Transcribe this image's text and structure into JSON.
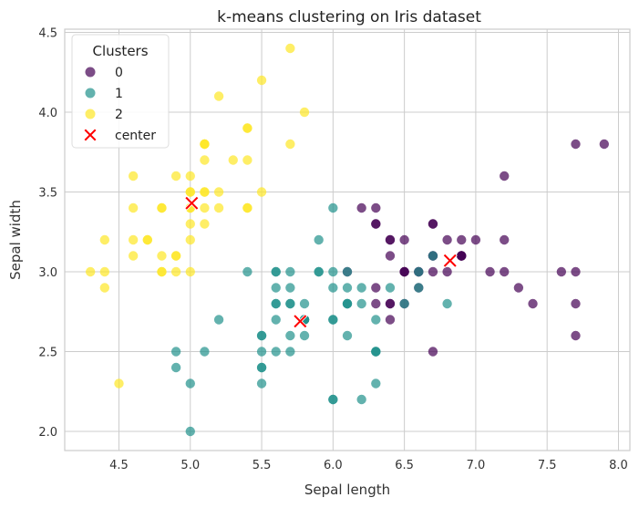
{
  "chart_data": {
    "type": "scatter",
    "title": "k-means clustering on Iris dataset",
    "xlabel": "Sepal length",
    "ylabel": "Sepal width",
    "xlim": [
      4.12,
      8.08
    ],
    "ylim": [
      1.88,
      4.52
    ],
    "x_ticks": [
      "4.5",
      "5.0",
      "5.5",
      "6.0",
      "6.5",
      "7.0",
      "7.5",
      "8.0"
    ],
    "x_tick_values": [
      4.5,
      5.0,
      5.5,
      6.0,
      6.5,
      7.0,
      7.5,
      8.0
    ],
    "y_ticks": [
      "2.0",
      "2.5",
      "3.0",
      "3.5",
      "4.0",
      "4.5"
    ],
    "y_tick_values": [
      2.0,
      2.5,
      3.0,
      3.5,
      4.0,
      4.5
    ],
    "grid": true,
    "legend": {
      "title": "Clusters",
      "position": "top-left",
      "entries": [
        "0",
        "1",
        "2",
        "center"
      ]
    },
    "series": [
      {
        "name": "0",
        "color": "#440154",
        "points": [
          [
            7.0,
            3.2
          ],
          [
            6.9,
            3.1
          ],
          [
            6.3,
            3.3
          ],
          [
            5.8,
            2.7
          ],
          [
            7.1,
            3.0
          ],
          [
            6.3,
            2.9
          ],
          [
            6.5,
            3.0
          ],
          [
            7.6,
            3.0
          ],
          [
            7.3,
            2.9
          ],
          [
            6.7,
            2.5
          ],
          [
            7.2,
            3.6
          ],
          [
            6.5,
            3.2
          ],
          [
            6.4,
            2.7
          ],
          [
            6.8,
            3.0
          ],
          [
            6.4,
            3.2
          ],
          [
            6.5,
            3.0
          ],
          [
            7.7,
            3.8
          ],
          [
            7.7,
            2.6
          ],
          [
            6.9,
            3.2
          ],
          [
            7.7,
            2.8
          ],
          [
            6.7,
            3.3
          ],
          [
            7.2,
            3.2
          ],
          [
            6.4,
            2.8
          ],
          [
            7.2,
            3.0
          ],
          [
            7.4,
            2.8
          ],
          [
            7.9,
            3.8
          ],
          [
            6.4,
            2.8
          ],
          [
            6.3,
            2.8
          ],
          [
            7.7,
            3.0
          ],
          [
            6.3,
            3.4
          ],
          [
            6.4,
            3.1
          ],
          [
            6.9,
            3.1
          ],
          [
            6.7,
            3.1
          ],
          [
            6.9,
            3.1
          ],
          [
            6.8,
            3.2
          ],
          [
            6.7,
            3.3
          ],
          [
            6.7,
            3.0
          ],
          [
            6.5,
            3.0
          ],
          [
            6.2,
            3.4
          ],
          [
            6.6,
            3.0
          ],
          [
            6.7,
            3.1
          ],
          [
            6.6,
            2.9
          ],
          [
            6.1,
            3.0
          ],
          [
            6.5,
            2.8
          ],
          [
            6.3,
            3.3
          ],
          [
            6.4,
            3.2
          ],
          [
            6.6,
            3.0
          ],
          [
            6.9,
            3.1
          ]
        ]
      },
      {
        "name": "1",
        "color": "#21918c",
        "points": [
          [
            5.5,
            2.3
          ],
          [
            6.5,
            2.8
          ],
          [
            5.7,
            2.8
          ],
          [
            4.9,
            2.4
          ],
          [
            6.6,
            2.9
          ],
          [
            5.2,
            2.7
          ],
          [
            5.0,
            2.0
          ],
          [
            5.9,
            3.0
          ],
          [
            6.0,
            2.2
          ],
          [
            6.1,
            2.9
          ],
          [
            5.6,
            2.9
          ],
          [
            6.7,
            3.1
          ],
          [
            5.6,
            3.0
          ],
          [
            5.8,
            2.7
          ],
          [
            6.2,
            2.2
          ],
          [
            5.6,
            2.5
          ],
          [
            5.9,
            3.2
          ],
          [
            6.1,
            2.8
          ],
          [
            6.3,
            2.5
          ],
          [
            6.1,
            2.8
          ],
          [
            6.4,
            2.9
          ],
          [
            6.6,
            3.0
          ],
          [
            6.8,
            2.8
          ],
          [
            6.0,
            2.9
          ],
          [
            5.7,
            2.6
          ],
          [
            5.5,
            2.4
          ],
          [
            5.5,
            2.4
          ],
          [
            5.8,
            2.7
          ],
          [
            6.0,
            2.7
          ],
          [
            5.4,
            3.0
          ],
          [
            6.0,
            3.4
          ],
          [
            6.3,
            2.3
          ],
          [
            5.6,
            3.0
          ],
          [
            5.5,
            2.5
          ],
          [
            5.5,
            2.6
          ],
          [
            6.1,
            3.0
          ],
          [
            5.8,
            2.6
          ],
          [
            5.0,
            2.3
          ],
          [
            5.6,
            2.7
          ],
          [
            5.7,
            3.0
          ],
          [
            5.7,
            2.9
          ],
          [
            6.2,
            2.9
          ],
          [
            5.1,
            2.5
          ],
          [
            5.7,
            2.8
          ],
          [
            4.9,
            2.5
          ],
          [
            6.0,
            2.2
          ],
          [
            5.6,
            2.8
          ],
          [
            6.3,
            2.7
          ],
          [
            5.8,
            2.8
          ],
          [
            6.1,
            2.6
          ],
          [
            6.0,
            3.0
          ],
          [
            5.8,
            2.7
          ],
          [
            5.9,
            3.0
          ],
          [
            6.3,
            2.5
          ],
          [
            6.2,
            2.8
          ],
          [
            5.8,
            2.7
          ],
          [
            6.3,
            2.5
          ],
          [
            6.0,
            2.7
          ],
          [
            5.6,
            2.8
          ],
          [
            6.1,
            2.8
          ],
          [
            5.5,
            2.6
          ],
          [
            5.7,
            2.5
          ]
        ]
      },
      {
        "name": "2",
        "color": "#fde725",
        "points": [
          [
            5.1,
            3.5
          ],
          [
            4.9,
            3.0
          ],
          [
            4.7,
            3.2
          ],
          [
            4.6,
            3.1
          ],
          [
            5.0,
            3.6
          ],
          [
            5.4,
            3.9
          ],
          [
            4.6,
            3.4
          ],
          [
            5.0,
            3.4
          ],
          [
            4.4,
            2.9
          ],
          [
            4.9,
            3.1
          ],
          [
            5.4,
            3.7
          ],
          [
            4.8,
            3.4
          ],
          [
            4.8,
            3.0
          ],
          [
            4.3,
            3.0
          ],
          [
            5.8,
            4.0
          ],
          [
            5.7,
            4.4
          ],
          [
            5.4,
            3.9
          ],
          [
            5.1,
            3.5
          ],
          [
            5.7,
            3.8
          ],
          [
            5.1,
            3.8
          ],
          [
            5.4,
            3.4
          ],
          [
            5.1,
            3.7
          ],
          [
            4.6,
            3.6
          ],
          [
            5.1,
            3.3
          ],
          [
            4.8,
            3.4
          ],
          [
            5.0,
            3.0
          ],
          [
            5.0,
            3.4
          ],
          [
            5.2,
            3.5
          ],
          [
            5.2,
            3.4
          ],
          [
            4.7,
            3.2
          ],
          [
            4.8,
            3.1
          ],
          [
            5.4,
            3.4
          ],
          [
            5.2,
            4.1
          ],
          [
            5.5,
            4.2
          ],
          [
            4.9,
            3.1
          ],
          [
            5.0,
            3.2
          ],
          [
            5.5,
            3.5
          ],
          [
            4.9,
            3.6
          ],
          [
            4.4,
            3.0
          ],
          [
            5.1,
            3.4
          ],
          [
            5.0,
            3.5
          ],
          [
            4.5,
            2.3
          ],
          [
            4.4,
            3.2
          ],
          [
            5.0,
            3.5
          ],
          [
            5.1,
            3.8
          ],
          [
            4.8,
            3.0
          ],
          [
            5.1,
            3.8
          ],
          [
            4.6,
            3.2
          ],
          [
            5.3,
            3.7
          ],
          [
            5.0,
            3.3
          ]
        ]
      }
    ],
    "centers": {
      "name": "center",
      "color": "#ff0000",
      "marker": "X",
      "points": [
        [
          6.82,
          3.07
        ],
        [
          5.77,
          2.69
        ],
        [
          5.01,
          3.43
        ]
      ]
    }
  }
}
